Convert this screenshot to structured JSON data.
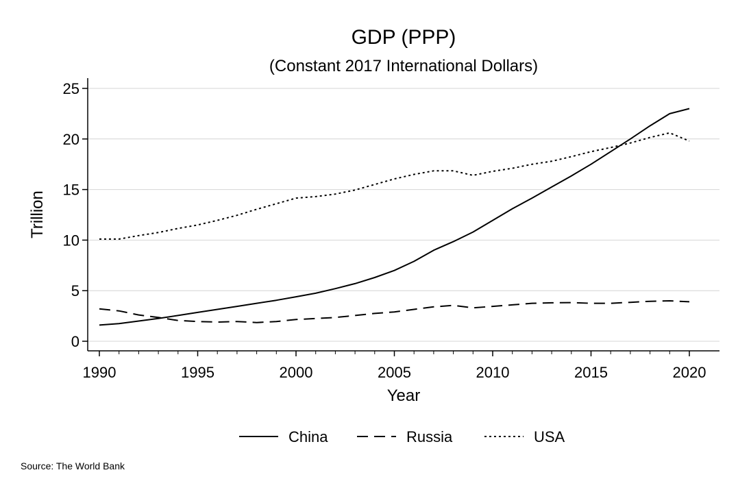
{
  "chart_data": {
    "type": "line",
    "title": "GDP (PPP)",
    "subtitle": "(Constant 2017 International Dollars)",
    "xlabel": "Year",
    "ylabel": "Trillion",
    "xlim": [
      1990,
      2020
    ],
    "ylim": [
      0,
      25
    ],
    "x_ticks": [
      1990,
      1995,
      2000,
      2005,
      2010,
      2015,
      2020
    ],
    "y_ticks": [
      0,
      5,
      10,
      15,
      20,
      25
    ],
    "grid": "horizontal",
    "legend": "bottom",
    "x": [
      1990,
      1991,
      1992,
      1993,
      1994,
      1995,
      1996,
      1997,
      1998,
      1999,
      2000,
      2001,
      2002,
      2003,
      2004,
      2005,
      2006,
      2007,
      2008,
      2009,
      2010,
      2011,
      2012,
      2013,
      2014,
      2015,
      2016,
      2017,
      2018,
      2019,
      2020
    ],
    "series": [
      {
        "name": "China",
        "dash": "solid",
        "values": [
          1.6,
          1.75,
          2.0,
          2.25,
          2.55,
          2.85,
          3.15,
          3.45,
          3.75,
          4.05,
          4.4,
          4.75,
          5.2,
          5.7,
          6.3,
          7.0,
          7.9,
          9.0,
          9.85,
          10.8,
          11.95,
          13.1,
          14.15,
          15.25,
          16.35,
          17.5,
          18.75,
          20.0,
          21.3,
          22.5,
          23.0
        ]
      },
      {
        "name": "Russia",
        "dash": "dashed",
        "values": [
          3.2,
          3.0,
          2.6,
          2.35,
          2.05,
          1.95,
          1.9,
          1.95,
          1.85,
          1.95,
          2.15,
          2.25,
          2.35,
          2.55,
          2.75,
          2.9,
          3.15,
          3.4,
          3.55,
          3.3,
          3.45,
          3.6,
          3.75,
          3.8,
          3.82,
          3.75,
          3.75,
          3.85,
          3.95,
          4.0,
          3.9
        ]
      },
      {
        "name": "USA",
        "dash": "dotted",
        "values": [
          10.1,
          10.1,
          10.45,
          10.75,
          11.15,
          11.5,
          11.95,
          12.45,
          13.05,
          13.6,
          14.15,
          14.3,
          14.55,
          14.95,
          15.5,
          16.05,
          16.5,
          16.85,
          16.85,
          16.4,
          16.8,
          17.1,
          17.5,
          17.8,
          18.25,
          18.75,
          19.15,
          19.6,
          20.15,
          20.6,
          19.8
        ]
      }
    ],
    "source": "Source: The World Bank"
  },
  "colors": {
    "line": "#000000",
    "grid": "#d4d4d4",
    "axis": "#000000",
    "background": "#ffffff"
  }
}
